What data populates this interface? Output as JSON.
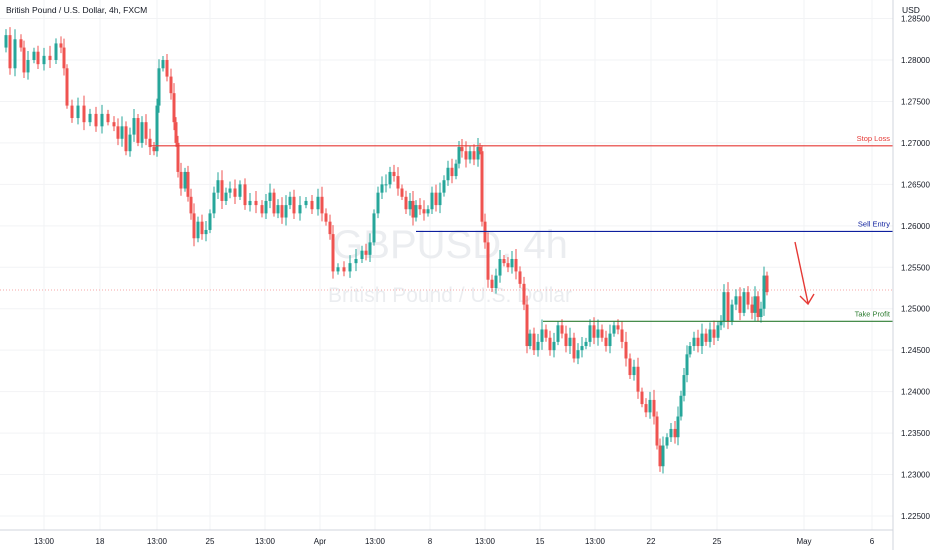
{
  "header": {
    "title": "British Pound / U.S. Dollar, 4h, FXCM",
    "currency": "USD"
  },
  "watermark": {
    "symbol": "GBPUSD, 4h",
    "name": "British Pound / U.S. Dollar"
  },
  "colors": {
    "up": "#26a69a",
    "down": "#ef5350",
    "stop_loss": "#e53935",
    "sell_entry": "#0d1f9e",
    "take_profit": "#2e7d32",
    "current_price": "#f5a7a7",
    "arrow": "#e53935"
  },
  "chart_data": {
    "type": "candlestick",
    "title": "British Pound / U.S. Dollar, 4h, FXCM",
    "y_unit": "USD",
    "ylim": [
      1.2225,
      1.2845
    ],
    "y_ticks": [
      "1.28500",
      "1.28000",
      "1.27500",
      "1.27000",
      "1.26500",
      "1.26000",
      "1.25500",
      "1.25000",
      "1.24500",
      "1.24000",
      "1.23500",
      "1.23000",
      "1.22500"
    ],
    "x_ticks": [
      "13:00",
      "18",
      "13:00",
      "25",
      "13:00",
      "Apr",
      "13:00",
      "8",
      "13:00",
      "15",
      "13:00",
      "22",
      "25",
      "May",
      "6"
    ],
    "levels": [
      {
        "name": "Stop Loss",
        "value": "1.26965"
      },
      {
        "name": "Sell Entry",
        "value": "1.25932"
      },
      {
        "name": "Take Profit",
        "value": "1.24848"
      }
    ],
    "path_points": [
      [
        0,
        1.2815
      ],
      [
        6,
        1.283
      ],
      [
        10,
        1.279
      ],
      [
        15,
        1.2825
      ],
      [
        21,
        1.2815
      ],
      [
        24,
        1.2785
      ],
      [
        28,
        1.28
      ],
      [
        34,
        1.281
      ],
      [
        38,
        1.2795
      ],
      [
        44,
        1.2805
      ],
      [
        50,
        1.28
      ],
      [
        56,
        1.282
      ],
      [
        61,
        1.2815
      ],
      [
        64,
        1.279
      ],
      [
        67,
        1.2745
      ],
      [
        72,
        1.273
      ],
      [
        78,
        1.2745
      ],
      [
        84,
        1.2725
      ],
      [
        90,
        1.2735
      ],
      [
        96,
        1.272
      ],
      [
        102,
        1.2735
      ],
      [
        108,
        1.2725
      ],
      [
        114,
        1.272
      ],
      [
        118,
        1.2705
      ],
      [
        122,
        1.272
      ],
      [
        126,
        1.269
      ],
      [
        130,
        1.271
      ],
      [
        134,
        1.273
      ],
      [
        138,
        1.27
      ],
      [
        142,
        1.2725
      ],
      [
        146,
        1.2705
      ],
      [
        150,
        1.2695
      ],
      [
        154,
        1.269
      ],
      [
        157,
        1.2745
      ],
      [
        159,
        1.279
      ],
      [
        163,
        1.28
      ],
      [
        167,
        1.278
      ],
      [
        171,
        1.276
      ],
      [
        174,
        1.2725
      ],
      [
        176,
        1.27
      ],
      [
        178,
        1.2665
      ],
      [
        181,
        1.2645
      ],
      [
        185,
        1.2665
      ],
      [
        188,
        1.2635
      ],
      [
        191,
        1.2615
      ],
      [
        194,
        1.2585
      ],
      [
        198,
        1.2605
      ],
      [
        202,
        1.259
      ],
      [
        206,
        1.2595
      ],
      [
        210,
        1.2615
      ],
      [
        214,
        1.264
      ],
      [
        218,
        1.2655
      ],
      [
        222,
        1.263
      ],
      [
        226,
        1.264
      ],
      [
        230,
        1.2645
      ],
      [
        235,
        1.2635
      ],
      [
        240,
        1.265
      ],
      [
        245,
        1.2625
      ],
      [
        250,
        1.263
      ],
      [
        256,
        1.2625
      ],
      [
        262,
        1.2615
      ],
      [
        266,
        1.263
      ],
      [
        270,
        1.264
      ],
      [
        274,
        1.2615
      ],
      [
        278,
        1.2625
      ],
      [
        282,
        1.261
      ],
      [
        286,
        1.2625
      ],
      [
        290,
        1.2635
      ],
      [
        294,
        1.2615
      ],
      [
        300,
        1.2625
      ],
      [
        306,
        1.263
      ],
      [
        312,
        1.262
      ],
      [
        318,
        1.2635
      ],
      [
        322,
        1.2615
      ],
      [
        326,
        1.2605
      ],
      [
        330,
        1.259
      ],
      [
        333,
        1.2545
      ],
      [
        338,
        1.255
      ],
      [
        344,
        1.2545
      ],
      [
        350,
        1.2555
      ],
      [
        356,
        1.256
      ],
      [
        362,
        1.257
      ],
      [
        366,
        1.2565
      ],
      [
        370,
        1.258
      ],
      [
        374,
        1.2615
      ],
      [
        378,
        1.264
      ],
      [
        382,
        1.265
      ],
      [
        386,
        1.265
      ],
      [
        390,
        1.2665
      ],
      [
        394,
        1.266
      ],
      [
        398,
        1.2645
      ],
      [
        402,
        1.2635
      ],
      [
        406,
        1.262
      ],
      [
        410,
        1.263
      ],
      [
        413,
        1.261
      ],
      [
        416,
        1.2625
      ],
      [
        420,
        1.262
      ],
      [
        424,
        1.2615
      ],
      [
        428,
        1.262
      ],
      [
        432,
        1.264
      ],
      [
        436,
        1.2625
      ],
      [
        440,
        1.264
      ],
      [
        444,
        1.2655
      ],
      [
        448,
        1.267
      ],
      [
        452,
        1.266
      ],
      [
        456,
        1.2675
      ],
      [
        459,
        1.2695
      ],
      [
        462,
        1.269
      ],
      [
        466,
        1.268
      ],
      [
        470,
        1.269
      ],
      [
        474,
        1.268
      ],
      [
        478,
        1.2695
      ],
      [
        480,
        1.269
      ],
      [
        482,
        1.2605
      ],
      [
        485,
        1.258
      ],
      [
        488,
        1.2535
      ],
      [
        492,
        1.2525
      ],
      [
        496,
        1.254
      ],
      [
        500,
        1.256
      ],
      [
        504,
        1.2555
      ],
      [
        508,
        1.255
      ],
      [
        512,
        1.256
      ],
      [
        516,
        1.2545
      ],
      [
        520,
        1.253
      ],
      [
        524,
        1.2505
      ],
      [
        527,
        1.2455
      ],
      [
        530,
        1.247
      ],
      [
        534,
        1.245
      ],
      [
        538,
        1.246
      ],
      [
        542,
        1.2475
      ],
      [
        546,
        1.2465
      ],
      [
        550,
        1.245
      ],
      [
        554,
        1.246
      ],
      [
        558,
        1.248
      ],
      [
        562,
        1.247
      ],
      [
        566,
        1.2455
      ],
      [
        570,
        1.2465
      ],
      [
        574,
        1.244
      ],
      [
        578,
        1.245
      ],
      [
        582,
        1.2455
      ],
      [
        586,
        1.246
      ],
      [
        590,
        1.248
      ],
      [
        594,
        1.2465
      ],
      [
        598,
        1.2475
      ],
      [
        602,
        1.2465
      ],
      [
        606,
        1.2455
      ],
      [
        610,
        1.247
      ],
      [
        614,
        1.248
      ],
      [
        618,
        1.2475
      ],
      [
        622,
        1.246
      ],
      [
        626,
        1.244
      ],
      [
        630,
        1.242
      ],
      [
        634,
        1.243
      ],
      [
        638,
        1.24
      ],
      [
        642,
        1.2385
      ],
      [
        646,
        1.2375
      ],
      [
        650,
        1.239
      ],
      [
        654,
        1.237
      ],
      [
        657,
        1.2335
      ],
      [
        660,
        1.231
      ],
      [
        663,
        1.2335
      ],
      [
        667,
        1.2345
      ],
      [
        671,
        1.2355
      ],
      [
        675,
        1.2345
      ],
      [
        678,
        1.237
      ],
      [
        681,
        1.2395
      ],
      [
        684,
        1.242
      ],
      [
        687,
        1.2445
      ],
      [
        690,
        1.2455
      ],
      [
        694,
        1.2465
      ],
      [
        698,
        1.2455
      ],
      [
        702,
        1.247
      ],
      [
        706,
        1.246
      ],
      [
        710,
        1.2475
      ],
      [
        714,
        1.2465
      ],
      [
        718,
        1.248
      ],
      [
        721,
        1.2485
      ],
      [
        724,
        1.252
      ],
      [
        728,
        1.2485
      ],
      [
        732,
        1.2505
      ],
      [
        736,
        1.2515
      ],
      [
        740,
        1.2495
      ],
      [
        744,
        1.252
      ],
      [
        748,
        1.2505
      ],
      [
        752,
        1.2495
      ],
      [
        755,
        1.2515
      ],
      [
        758,
        1.249
      ],
      [
        761,
        1.25
      ],
      [
        764,
        1.254
      ],
      [
        767,
        1.252
      ]
    ]
  }
}
